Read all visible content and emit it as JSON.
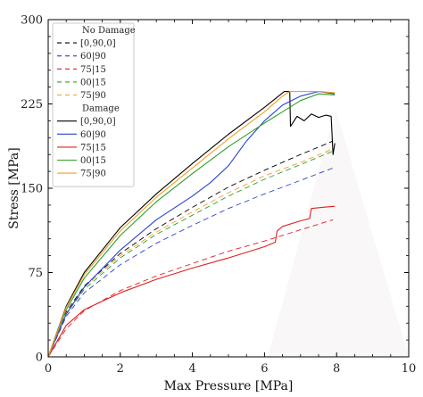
{
  "chart_data": {
    "type": "line",
    "xlabel": "Max Pressure [MPa]",
    "ylabel": "Stress [MPa]",
    "xlim": [
      0,
      10
    ],
    "ylim": [
      0,
      300
    ],
    "xticks": [
      "0",
      "2",
      "4",
      "6",
      "8",
      "10"
    ],
    "yticks": [
      "0",
      "75",
      "150",
      "225",
      "300"
    ],
    "grid": false,
    "legend": {
      "placement": "top-left",
      "groups": [
        {
          "title": "No Damage",
          "entries": [
            "[0,90,0]",
            "60|90",
            "75|15",
            "00|15",
            "75|90"
          ]
        },
        {
          "title": "Damage",
          "entries": [
            "[0,90,0]",
            "60|90",
            "75|15",
            "00|15",
            "75|90"
          ]
        }
      ]
    },
    "colors": {
      "[0,90,0]": "#000000",
      "60|90": "#2b3fd6",
      "75|15": "#e02020",
      "00|15": "#2ca02c",
      "75|90": "#f0a020"
    },
    "series": [
      {
        "name": "[0,90,0]",
        "group": "No Damage",
        "style": "dashed",
        "x": [
          0,
          0.5,
          1,
          2,
          3,
          4,
          5,
          6,
          7,
          7.9
        ],
        "y": [
          0,
          40,
          63,
          92,
          114,
          133,
          151,
          166,
          180,
          192
        ]
      },
      {
        "name": "60|90",
        "group": "No Damage",
        "style": "dashed",
        "x": [
          0,
          0.5,
          1,
          2,
          3,
          4,
          5,
          6,
          7,
          7.9
        ],
        "y": [
          0,
          36,
          57,
          82,
          101,
          117,
          132,
          145,
          157,
          168
        ]
      },
      {
        "name": "75|15",
        "group": "No Damage",
        "style": "dashed",
        "x": [
          0,
          0.5,
          1,
          2,
          3,
          4,
          5,
          6,
          7,
          7.9
        ],
        "y": [
          0,
          25,
          41,
          59,
          72,
          83,
          94,
          103,
          113,
          122
        ]
      },
      {
        "name": "00|15",
        "group": "No Damage",
        "style": "dashed",
        "x": [
          0,
          0.5,
          1,
          2,
          3,
          4,
          5,
          6,
          7,
          7.9
        ],
        "y": [
          0,
          38,
          60,
          88,
          109,
          126,
          143,
          158,
          171,
          183
        ]
      },
      {
        "name": "75|90",
        "group": "No Damage",
        "style": "dashed",
        "x": [
          0,
          0.5,
          1,
          2,
          3,
          4,
          5,
          6,
          7,
          7.9
        ],
        "y": [
          0,
          39,
          62,
          90,
          111,
          129,
          146,
          161,
          173,
          185
        ]
      },
      {
        "name": "[0,90,0]",
        "group": "Damage",
        "style": "solid",
        "x": [
          0,
          0.5,
          1,
          2,
          3,
          4,
          5,
          6,
          6.55,
          6.7,
          6.72,
          6.9,
          7.1,
          7.3,
          7.5,
          7.7,
          7.85,
          7.9,
          7.95
        ],
        "y": [
          0,
          45,
          75,
          115,
          145,
          172,
          198,
          222,
          236,
          236,
          205,
          214,
          210,
          216,
          213,
          215,
          214,
          180,
          190
        ]
      },
      {
        "name": "60|90",
        "group": "Damage",
        "style": "solid",
        "x": [
          0,
          0.5,
          1,
          2,
          3,
          4,
          4.5,
          5,
          5.5,
          6,
          6.5,
          7,
          7.5,
          7.95
        ],
        "y": [
          0,
          38,
          62,
          95,
          122,
          143,
          155,
          170,
          192,
          210,
          224,
          232,
          236,
          234
        ]
      },
      {
        "name": "75|15",
        "group": "Damage",
        "style": "solid",
        "x": [
          0,
          0.5,
          1,
          2,
          3,
          4,
          5,
          6,
          6.3,
          6.35,
          6.5,
          7,
          7.25,
          7.3,
          7.6,
          7.95
        ],
        "y": [
          0,
          28,
          42,
          57,
          69,
          79,
          88,
          98,
          102,
          112,
          116,
          121,
          123,
          132,
          133,
          134
        ]
      },
      {
        "name": "00|15",
        "group": "Damage",
        "style": "solid",
        "x": [
          0,
          0.5,
          1,
          2,
          3,
          4,
          5,
          6,
          6.5,
          7,
          7.5,
          7.95
        ],
        "y": [
          0,
          42,
          70,
          108,
          138,
          163,
          187,
          208,
          218,
          228,
          234,
          233
        ]
      },
      {
        "name": "75|90",
        "group": "Damage",
        "style": "solid",
        "x": [
          0,
          0.5,
          1,
          2,
          3,
          4,
          5,
          6,
          6.5,
          6.7,
          7,
          7.5,
          7.95
        ],
        "y": [
          0,
          44,
          73,
          112,
          142,
          168,
          194,
          218,
          232,
          236,
          236,
          236,
          235
        ]
      }
    ]
  }
}
